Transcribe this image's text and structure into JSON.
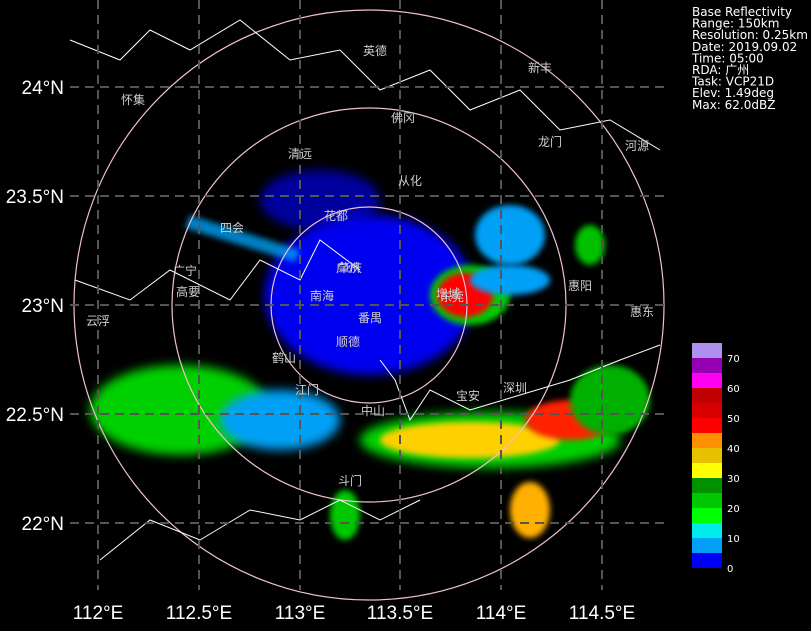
{
  "info": [
    "Base Reflectivity",
    "Range: 150km",
    "Resolution: 0.25km",
    "Date: 2019.09.02",
    "Time: 05:00",
    "RDA: 广州",
    "Task: VCP21D",
    "Elev: 1.49deg",
    "Max: 62.0dBZ"
  ],
  "lat_labels": [
    "24°N",
    "23.5°N",
    "23°N",
    "22.5°N",
    "22°N"
  ],
  "lon_labels": [
    "112°E",
    "112.5°E",
    "113°E",
    "113.5°E",
    "114°E",
    "114.5°E"
  ],
  "cities": [
    "英德",
    "新丰",
    "怀集",
    "佛冈",
    "清远",
    "龙门",
    "河源",
    "从化",
    "四会",
    "花都",
    "广宁",
    "广州",
    "增城",
    "惠阳",
    "高要",
    "肇庆",
    "南海",
    "东莞",
    "番禺",
    "云浮",
    "顺德",
    "惠东",
    "鹤山",
    "江门",
    "中山",
    "宝安",
    "深圳",
    "斗门"
  ],
  "colorbar_ticks": [
    "0",
    "10",
    "20",
    "30",
    "40",
    "50",
    "60",
    "70"
  ]
}
